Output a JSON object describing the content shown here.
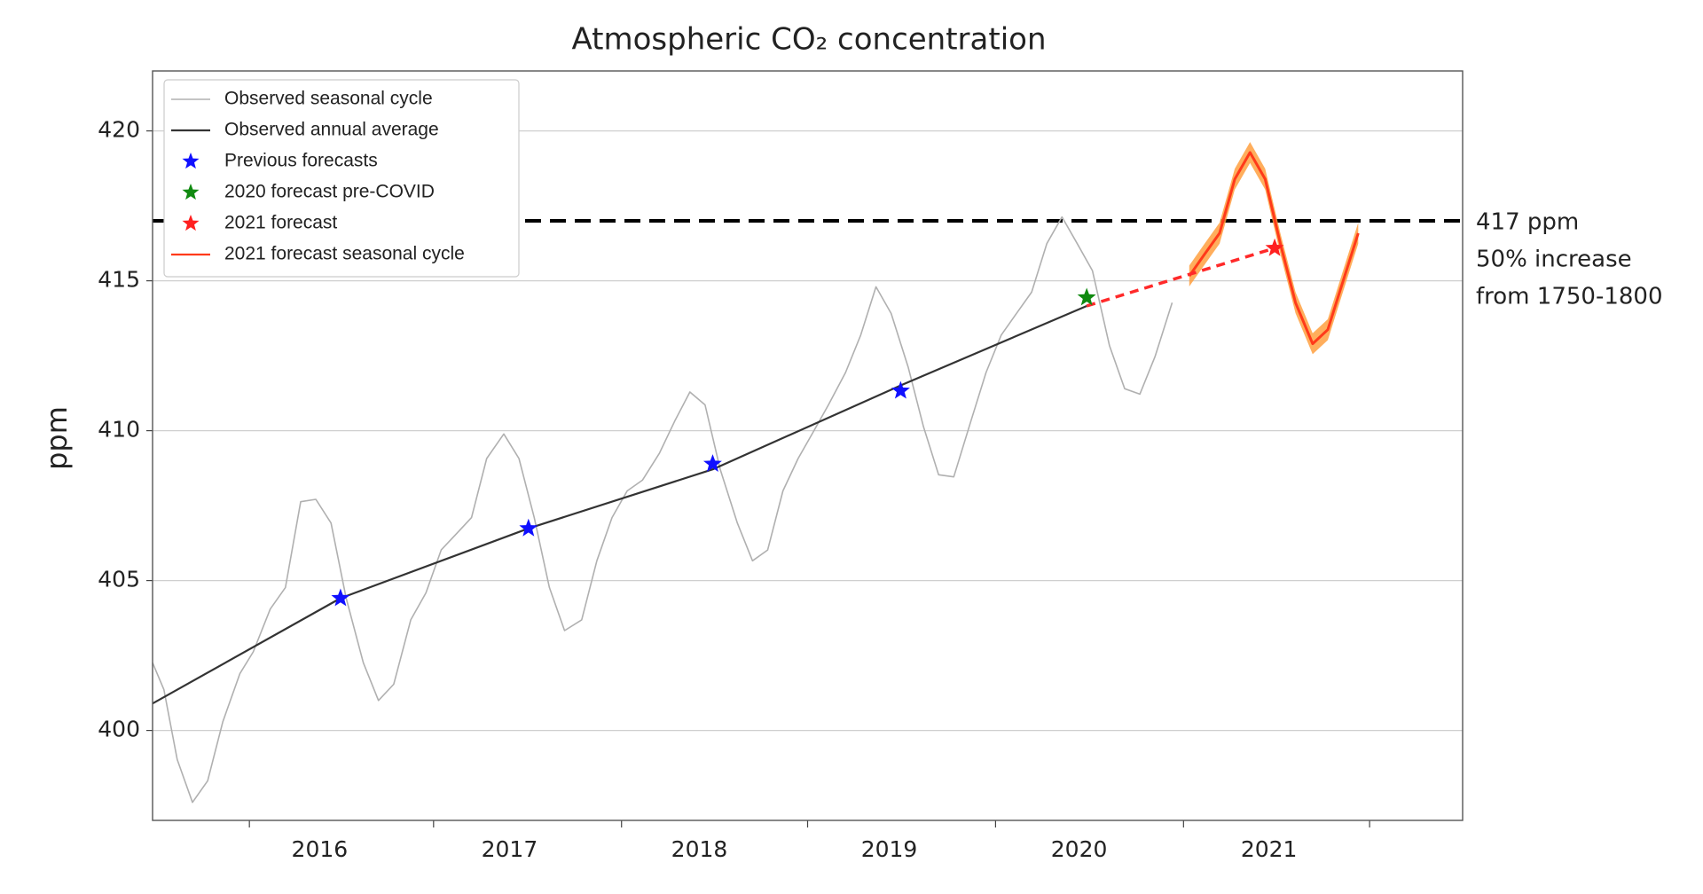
{
  "chart_data": {
    "type": "line",
    "title": "Atmospheric CO₂ concentration",
    "y_label": "ppm",
    "xlim": [
      2015.12,
      2022.02
    ],
    "xticks": [
      2016,
      2017,
      2018,
      2019,
      2020,
      2021
    ],
    "xminorticks": [
      2015.63,
      2016.6,
      2017.59,
      2018.57,
      2019.56,
      2020.55,
      2021.53
    ],
    "ylim": [
      397,
      422
    ],
    "yticks": [
      400,
      405,
      410,
      415,
      420
    ],
    "grid": true,
    "legend": "upper-left",
    "hline": {
      "value": 417,
      "color": "#000000"
    },
    "annotations": [
      "417 ppm",
      "50% increase",
      "from 1750-1800"
    ],
    "connector_color": "#ff2a2a",
    "series": [
      {
        "name": "Observed seasonal cycle",
        "marker": "line",
        "color": "#b0b0b0",
        "x": [
          2015.12,
          2015.18,
          2015.25,
          2015.33,
          2015.41,
          2015.49,
          2015.58,
          2015.65,
          2015.74,
          2015.82,
          2015.9,
          2015.98,
          2016.06,
          2016.14,
          2016.23,
          2016.31,
          2016.39,
          2016.48,
          2016.56,
          2016.64,
          2016.72,
          2016.8,
          2016.88,
          2016.97,
          2017.05,
          2017.13,
          2017.21,
          2017.29,
          2017.38,
          2017.46,
          2017.54,
          2017.62,
          2017.7,
          2017.79,
          2017.87,
          2017.95,
          2018.03,
          2018.11,
          2018.2,
          2018.28,
          2018.36,
          2018.44,
          2018.52,
          2018.6,
          2018.68,
          2018.77,
          2018.85,
          2018.93,
          2019.01,
          2019.1,
          2019.18,
          2019.26,
          2019.34,
          2019.43,
          2019.51,
          2019.59,
          2019.67,
          2019.75,
          2019.83,
          2019.91,
          2019.99,
          2020.07,
          2020.16,
          2020.24,
          2020.32,
          2020.4,
          2020.49
        ],
        "values": [
          402.26,
          401.36,
          399.03,
          397.6,
          398.32,
          400.29,
          401.9,
          402.62,
          404.05,
          404.77,
          407.63,
          407.71,
          406.92,
          404.41,
          402.26,
          401.0,
          401.54,
          403.69,
          404.59,
          406.02,
          406.56,
          407.1,
          409.07,
          409.89,
          409.07,
          407.1,
          404.77,
          403.33,
          403.69,
          405.66,
          407.1,
          407.99,
          408.35,
          409.25,
          410.32,
          411.29,
          410.86,
          408.71,
          406.92,
          405.66,
          406.02,
          407.99,
          409.07,
          409.96,
          410.86,
          411.94,
          413.19,
          414.8,
          413.91,
          412.11,
          410.14,
          408.53,
          408.46,
          410.32,
          411.94,
          413.19,
          413.91,
          414.62,
          416.24,
          417.13,
          416.24,
          415.34,
          412.83,
          411.4,
          411.22,
          412.47,
          414.27
        ]
      },
      {
        "name": "Observed annual average",
        "marker": "line",
        "color": "#333333",
        "x": [
          2015.12,
          2016.11,
          2017.1,
          2018.07,
          2019.06,
          2020.04
        ],
        "values": [
          400.9,
          404.41,
          406.74,
          408.71,
          411.51,
          414.16
        ]
      },
      {
        "name": "Previous forecasts",
        "marker": "star",
        "color": "#1010ff",
        "x": [
          2016.11,
          2017.1,
          2018.07,
          2019.06
        ],
        "values": [
          404.41,
          406.74,
          408.89,
          411.33
        ]
      },
      {
        "name": "2020 forecast pre-COVID",
        "marker": "star",
        "color": "#108a10",
        "x": [
          2020.04
        ],
        "values": [
          414.44
        ]
      },
      {
        "name": "2021 forecast",
        "marker": "star",
        "color": "#ff2020",
        "x": [
          2021.03
        ],
        "values": [
          416.09
        ]
      },
      {
        "name": "2021 forecast seasonal cycle",
        "marker": "line",
        "color": "#ff3a1a",
        "band_color": "#ffa040",
        "x": [
          2020.58,
          2020.66,
          2020.74,
          2020.82,
          2020.9,
          2020.98,
          2021.06,
          2021.14,
          2021.23,
          2021.31,
          2021.39,
          2021.47
        ],
        "values": [
          415.16,
          415.88,
          416.59,
          418.39,
          419.28,
          418.39,
          416.24,
          414.27,
          412.9,
          413.37,
          414.98,
          416.59
        ],
        "lower": [
          414.81,
          415.53,
          416.24,
          418.04,
          418.93,
          418.04,
          415.89,
          413.92,
          412.55,
          413.02,
          414.63,
          416.24
        ],
        "upper": [
          415.51,
          416.23,
          416.94,
          418.74,
          419.63,
          418.74,
          416.59,
          414.62,
          413.25,
          413.72,
          415.33,
          416.94
        ]
      }
    ]
  }
}
